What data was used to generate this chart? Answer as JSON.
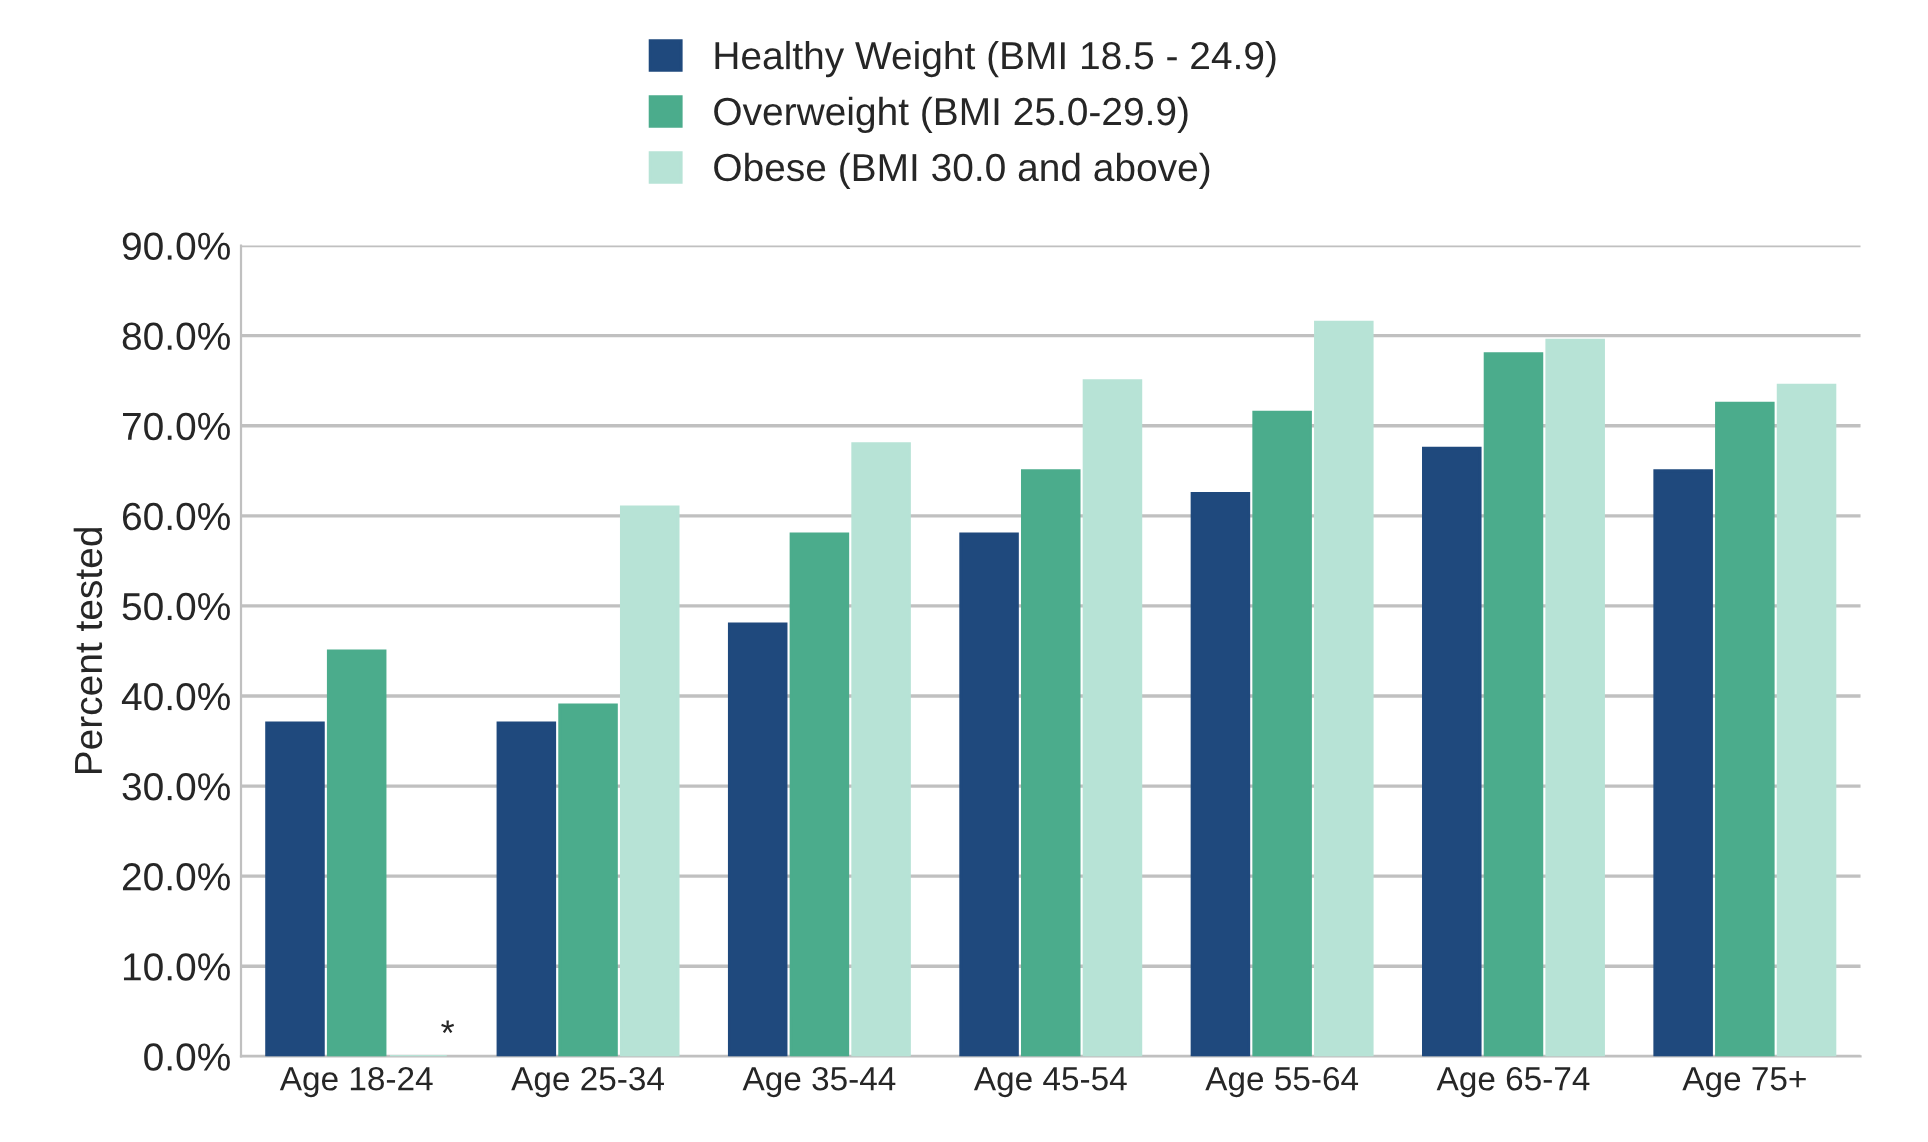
{
  "chart_data": {
    "type": "bar",
    "ylabel": "Percent tested",
    "categories": [
      "Age 18-24",
      "Age 25-34",
      "Age 35-44",
      "Age 45-54",
      "Age 55-64",
      "Age 65-74",
      "Age 75+"
    ],
    "series": [
      {
        "name": "Healthy Weight (BMI 18.5 - 24.9)",
        "color": "#1f497d",
        "values": [
          37,
          37,
          48,
          58,
          62.5,
          67.5,
          65
        ]
      },
      {
        "name": "Overweight (BMI 25.0-29.9)",
        "color": "#4bac8c",
        "values": [
          45,
          39,
          58,
          65,
          71.5,
          78,
          72.5
        ]
      },
      {
        "name": "Obese (BMI 30.0 and above)",
        "color": "#b7e3d6",
        "values": [
          0,
          61,
          68,
          75,
          81.5,
          79.5,
          74.5
        ]
      }
    ],
    "ylim": [
      0,
      90
    ],
    "yticks": [
      {
        "value": 0,
        "label": "0.0%"
      },
      {
        "value": 10,
        "label": "10.0%"
      },
      {
        "value": 20,
        "label": "20.0%"
      },
      {
        "value": 30,
        "label": "30.0%"
      },
      {
        "value": 40,
        "label": "40.0%"
      },
      {
        "value": 50,
        "label": "50.0%"
      },
      {
        "value": 60,
        "label": "60.0%"
      },
      {
        "value": 70,
        "label": "70.0%"
      },
      {
        "value": 80,
        "label": "80.0%"
      },
      {
        "value": 90,
        "label": "90.0%"
      }
    ],
    "annotations": [
      {
        "text": "*",
        "x": "Age 18-24",
        "y": 0
      }
    ],
    "grid": "y",
    "legend": "top"
  }
}
